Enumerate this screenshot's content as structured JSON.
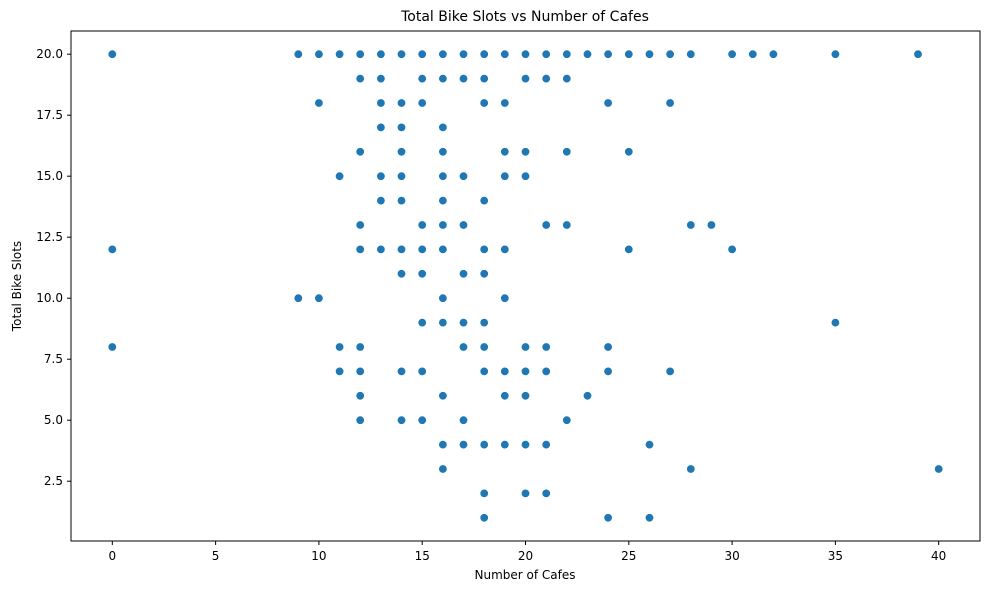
{
  "chart_data": {
    "type": "scatter",
    "title": "Total Bike Slots vs Number of Cafes",
    "xlabel": "Number of Cafes",
    "ylabel": "Total Bike Slots",
    "xlim": [
      -2,
      42
    ],
    "ylim": [
      0.05,
      20.95
    ],
    "xticks": [
      0,
      5,
      10,
      15,
      20,
      25,
      30,
      35,
      40
    ],
    "xtick_labels": [
      "0",
      "5",
      "10",
      "15",
      "20",
      "25",
      "30",
      "35",
      "40"
    ],
    "yticks": [
      2.5,
      5.0,
      7.5,
      10.0,
      12.5,
      15.0,
      17.5,
      20.0
    ],
    "ytick_labels": [
      "2.5",
      "5.0",
      "7.5",
      "10.0",
      "12.5",
      "15.0",
      "17.5",
      "20.0"
    ],
    "grid": false,
    "marker_color": "#1f77b4",
    "points": [
      [
        0,
        20
      ],
      [
        9,
        20
      ],
      [
        10,
        20
      ],
      [
        11,
        20
      ],
      [
        12,
        20
      ],
      [
        13,
        20
      ],
      [
        14,
        20
      ],
      [
        15,
        20
      ],
      [
        16,
        20
      ],
      [
        17,
        20
      ],
      [
        18,
        20
      ],
      [
        19,
        20
      ],
      [
        20,
        20
      ],
      [
        21,
        20
      ],
      [
        22,
        20
      ],
      [
        23,
        20
      ],
      [
        24,
        20
      ],
      [
        25,
        20
      ],
      [
        26,
        20
      ],
      [
        27,
        20
      ],
      [
        28,
        20
      ],
      [
        30,
        20
      ],
      [
        31,
        20
      ],
      [
        32,
        20
      ],
      [
        35,
        20
      ],
      [
        39,
        20
      ],
      [
        12,
        19
      ],
      [
        13,
        19
      ],
      [
        15,
        19
      ],
      [
        16,
        19
      ],
      [
        17,
        19
      ],
      [
        18,
        19
      ],
      [
        20,
        19
      ],
      [
        21,
        19
      ],
      [
        22,
        19
      ],
      [
        10,
        18
      ],
      [
        13,
        18
      ],
      [
        14,
        18
      ],
      [
        15,
        18
      ],
      [
        18,
        18
      ],
      [
        19,
        18
      ],
      [
        24,
        18
      ],
      [
        27,
        18
      ],
      [
        13,
        17
      ],
      [
        14,
        17
      ],
      [
        16,
        17
      ],
      [
        12,
        16
      ],
      [
        14,
        16
      ],
      [
        16,
        16
      ],
      [
        19,
        16
      ],
      [
        20,
        16
      ],
      [
        22,
        16
      ],
      [
        25,
        16
      ],
      [
        11,
        15
      ],
      [
        13,
        15
      ],
      [
        14,
        15
      ],
      [
        16,
        15
      ],
      [
        17,
        15
      ],
      [
        19,
        15
      ],
      [
        20,
        15
      ],
      [
        13,
        14
      ],
      [
        14,
        14
      ],
      [
        16,
        14
      ],
      [
        18,
        14
      ],
      [
        12,
        13
      ],
      [
        15,
        13
      ],
      [
        16,
        13
      ],
      [
        17,
        13
      ],
      [
        21,
        13
      ],
      [
        22,
        13
      ],
      [
        28,
        13
      ],
      [
        29,
        13
      ],
      [
        0,
        12
      ],
      [
        12,
        12
      ],
      [
        13,
        12
      ],
      [
        14,
        12
      ],
      [
        15,
        12
      ],
      [
        16,
        12
      ],
      [
        18,
        12
      ],
      [
        19,
        12
      ],
      [
        25,
        12
      ],
      [
        30,
        12
      ],
      [
        14,
        11
      ],
      [
        15,
        11
      ],
      [
        17,
        11
      ],
      [
        18,
        11
      ],
      [
        9,
        10
      ],
      [
        10,
        10
      ],
      [
        16,
        10
      ],
      [
        19,
        10
      ],
      [
        15,
        9
      ],
      [
        16,
        9
      ],
      [
        17,
        9
      ],
      [
        18,
        9
      ],
      [
        35,
        9
      ],
      [
        0,
        8
      ],
      [
        11,
        8
      ],
      [
        12,
        8
      ],
      [
        17,
        8
      ],
      [
        18,
        8
      ],
      [
        20,
        8
      ],
      [
        21,
        8
      ],
      [
        24,
        8
      ],
      [
        11,
        7
      ],
      [
        12,
        7
      ],
      [
        14,
        7
      ],
      [
        15,
        7
      ],
      [
        18,
        7
      ],
      [
        19,
        7
      ],
      [
        20,
        7
      ],
      [
        21,
        7
      ],
      [
        24,
        7
      ],
      [
        27,
        7
      ],
      [
        12,
        6
      ],
      [
        16,
        6
      ],
      [
        19,
        6
      ],
      [
        20,
        6
      ],
      [
        23,
        6
      ],
      [
        12,
        5
      ],
      [
        14,
        5
      ],
      [
        15,
        5
      ],
      [
        17,
        5
      ],
      [
        22,
        5
      ],
      [
        16,
        4
      ],
      [
        17,
        4
      ],
      [
        18,
        4
      ],
      [
        19,
        4
      ],
      [
        20,
        4
      ],
      [
        21,
        4
      ],
      [
        26,
        4
      ],
      [
        16,
        3
      ],
      [
        28,
        3
      ],
      [
        40,
        3
      ],
      [
        18,
        2
      ],
      [
        20,
        2
      ],
      [
        21,
        2
      ],
      [
        18,
        1
      ],
      [
        24,
        1
      ],
      [
        26,
        1
      ]
    ]
  }
}
